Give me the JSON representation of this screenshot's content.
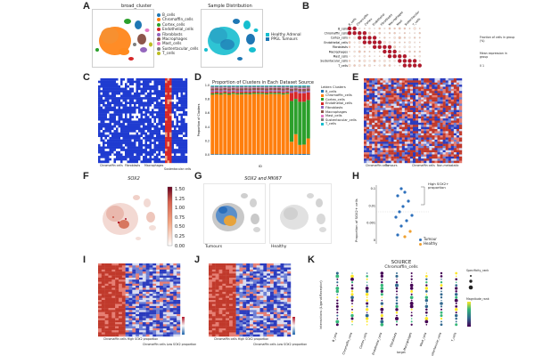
{
  "panel_labels": {
    "a": "A",
    "b": "B",
    "c": "C",
    "d": "D",
    "e": "E",
    "f": "F",
    "g": "G",
    "h": "H",
    "i": "I",
    "j": "J",
    "k": "K"
  },
  "panel_a": {
    "title_left": "broad_cluster",
    "title_right": "Sample Distribution",
    "legend_left": [
      {
        "label": "B_cells",
        "color": "#1f77b4"
      },
      {
        "label": "Chromaffin_cells",
        "color": "#ff7f0e"
      },
      {
        "label": "Cortex_cells",
        "color": "#2ca02c"
      },
      {
        "label": "Endothelial_cells",
        "color": "#d62728"
      },
      {
        "label": "Fibroblasts",
        "color": "#9467bd"
      },
      {
        "label": "Macrophages",
        "color": "#8c564b"
      },
      {
        "label": "Mast_cells",
        "color": "#e377c2"
      },
      {
        "label": "Sustentacular_cells",
        "color": "#7f7f7f"
      },
      {
        "label": "T_cells",
        "color": "#bcbd22"
      }
    ],
    "legend_right": [
      {
        "label": "Healthy Adrenal",
        "color": "#17becf"
      },
      {
        "label": "PPGL Tumours",
        "color": "#1f77b4"
      }
    ]
  },
  "panel_b": {
    "rows": [
      "B_cells",
      "Chromaffin_cells",
      "Cortex_cells",
      "Endothelial_cells",
      "Fibroblasts",
      "Macrophages",
      "Mast_cells",
      "Sustentacular_cells",
      "T_cells"
    ],
    "cols": [
      "B_cells",
      "Chromaffin",
      "Cortex",
      "Endothelial",
      "Fibroblasts",
      "Macrophages",
      "Mast",
      "Sustentacular",
      "T_cells"
    ],
    "legend_title": "Fraction of cells in group (%)",
    "legend_title2": "Mean expression in group",
    "legend_scale": "0 1"
  },
  "panel_c": {
    "xlabels": [
      "Chromaffin cells",
      "Fibroblasts",
      "Macrophages",
      "Sustentacular cells"
    ]
  },
  "panel_d": {
    "title": "Proportion of Clusters in Each Dataset Source",
    "ylabel": "Proportion of Clusters",
    "xlabel": "ID",
    "legend_title": "Leiden Clusters",
    "legend": [
      {
        "label": "B_cells",
        "color": "#1f77b4"
      },
      {
        "label": "Chromaffin_cells",
        "color": "#ff7f0e"
      },
      {
        "label": "Cortex_cells",
        "color": "#2ca02c"
      },
      {
        "label": "Endothelial_cells",
        "color": "#d62728"
      },
      {
        "label": "Fibroblasts",
        "color": "#9467bd"
      },
      {
        "label": "Macrophages",
        "color": "#8c564b"
      },
      {
        "label": "Mast_cells",
        "color": "#e377c2"
      },
      {
        "label": "Sustentacular_cells",
        "color": "#7f7f7f"
      },
      {
        "label": "T_cells",
        "color": "#17becf"
      }
    ],
    "yticks": [
      "0.0",
      "0.2",
      "0.4",
      "0.6",
      "0.8",
      "1.0"
    ]
  },
  "panel_e": {
    "xlabels": [
      "Chromaffin cells",
      "Tumours",
      "Chromaffin cells",
      "Non-metastatic"
    ]
  },
  "panel_f": {
    "title": "SOX2",
    "cbar_ticks": [
      "1.50",
      "1.25",
      "1.00",
      "0.75",
      "0.50",
      "0.25",
      "0.00"
    ]
  },
  "panel_g": {
    "title": "SOX2 and MKI67",
    "label_left": "Tumours",
    "label_right": "Healthy"
  },
  "panel_h": {
    "ylabel": "Proportion of SOX2+ cells",
    "annotation": "High SOX2+ proportion",
    "yticks": [
      "0.1",
      "0.01",
      "0.001",
      "0"
    ],
    "legend": [
      {
        "label": "Tumour",
        "color": "#2c6fbb"
      },
      {
        "label": "Healthy",
        "color": "#f0a030"
      }
    ]
  },
  "panel_i": {
    "xlabels": [
      "Chromaffin cells High SOX2 proportion",
      "Chromaffin cells Low SOX2 proportion"
    ]
  },
  "panel_j": {
    "xlabels": [
      "Chromaffin cells High SOX2 proportion",
      "Chromaffin cells Low SOX2 proportion"
    ]
  },
  "panel_k": {
    "title": "SOURCE",
    "subtitle": "Chromaffin_cells",
    "ylabel": "interactions (Ligand:Receptor)",
    "xlabel": "target",
    "cols": [
      "B_cells",
      "Chromaffin_cells",
      "Cortex_cells",
      "Endothelial_cells",
      "Fibroblasts",
      "Macrophages",
      "Mast_cells",
      "Sustentacular_cells",
      "T_cells"
    ],
    "legend_title1": "Specificity_rank",
    "legend_title2": "Magnitude_rank"
  }
}
